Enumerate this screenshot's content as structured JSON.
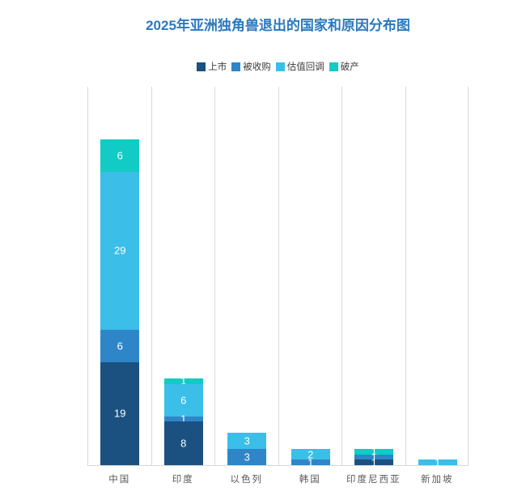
{
  "title": "2025年亚洲独角兽退出的国家和原因分布图",
  "chart_data": {
    "type": "bar",
    "stacked": true,
    "title": "2025年亚洲独角兽退出的国家和原因分布图",
    "categories": [
      "中国",
      "印度",
      "以色列",
      "韩国",
      "印度尼西亚",
      "新加坡"
    ],
    "series": [
      {
        "name": "上市",
        "color": "#1B5180",
        "values": [
          19,
          8,
          0,
          0,
          1,
          0
        ]
      },
      {
        "name": "被收购",
        "color": "#2E86C8",
        "values": [
          6,
          1,
          3,
          1,
          1,
          0
        ]
      },
      {
        "name": "估值回调",
        "color": "#3BBEE8",
        "values": [
          29,
          6,
          3,
          2,
          0,
          1
        ]
      },
      {
        "name": "破产",
        "color": "#12CBC4",
        "values": [
          6,
          1,
          0,
          0,
          1,
          0
        ]
      }
    ],
    "totals": [
      60,
      16,
      6,
      3,
      3,
      1
    ],
    "ylim": [
      0,
      70
    ],
    "legend_position": "top",
    "gridlines": "vertical",
    "value_label_color": "#FFFFFF",
    "title_color": "#2B79BE",
    "axis_label_color": "#595959"
  }
}
